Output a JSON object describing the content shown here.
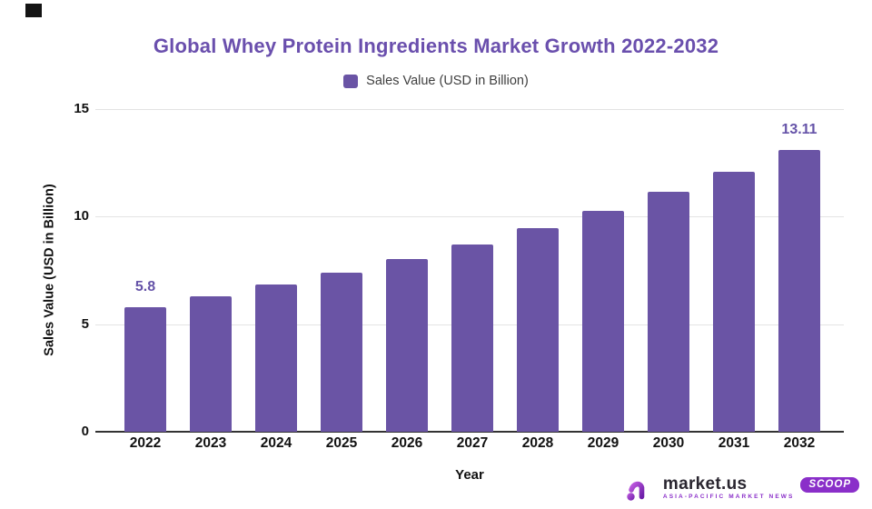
{
  "title_area": {
    "title": "Global Whey Protein Ingredients Market Growth 2022-2032"
  },
  "legend": {
    "label": "Sales Value (USD in Billion)",
    "swatch_color": "#6a54a5"
  },
  "chart_data": {
    "type": "bar",
    "title": "Global Whey Protein Ingredients Market Growth 2022-2032",
    "categories": [
      "2022",
      "2023",
      "2024",
      "2025",
      "2026",
      "2027",
      "2028",
      "2029",
      "2030",
      "2031",
      "2032"
    ],
    "values": [
      5.8,
      6.29,
      6.83,
      7.41,
      8.04,
      8.72,
      9.46,
      10.27,
      11.14,
      12.08,
      13.11
    ],
    "series_name": "Sales Value (USD in Billion)",
    "annotations": [
      {
        "index": 0,
        "label": "5.8"
      },
      {
        "index": 10,
        "label": "13.11"
      }
    ],
    "xlabel": "Year",
    "ylabel": "Sales Value (USD in Billion)",
    "ylim": [
      0,
      15
    ],
    "yticks": [
      0,
      5,
      10,
      15
    ],
    "grid": "horizontal",
    "legend_position": "top",
    "bar_color": "#6a54a5"
  },
  "logo": {
    "brand": "market.us",
    "tagline": "ASIA-PACIFIC MARKET NEWS",
    "badge": "SCOOP"
  },
  "colors": {
    "title_purple": "#6a4fad",
    "bar_purple": "#6a54a5",
    "label_purple": "#6553a8",
    "axis_text": "#111111",
    "legend_text": "#3f3f3f",
    "gridline": "#e3e3e3",
    "baseline": "#333333",
    "logo_purple": "#8a2fc9",
    "brand_text": "#2a2630"
  }
}
